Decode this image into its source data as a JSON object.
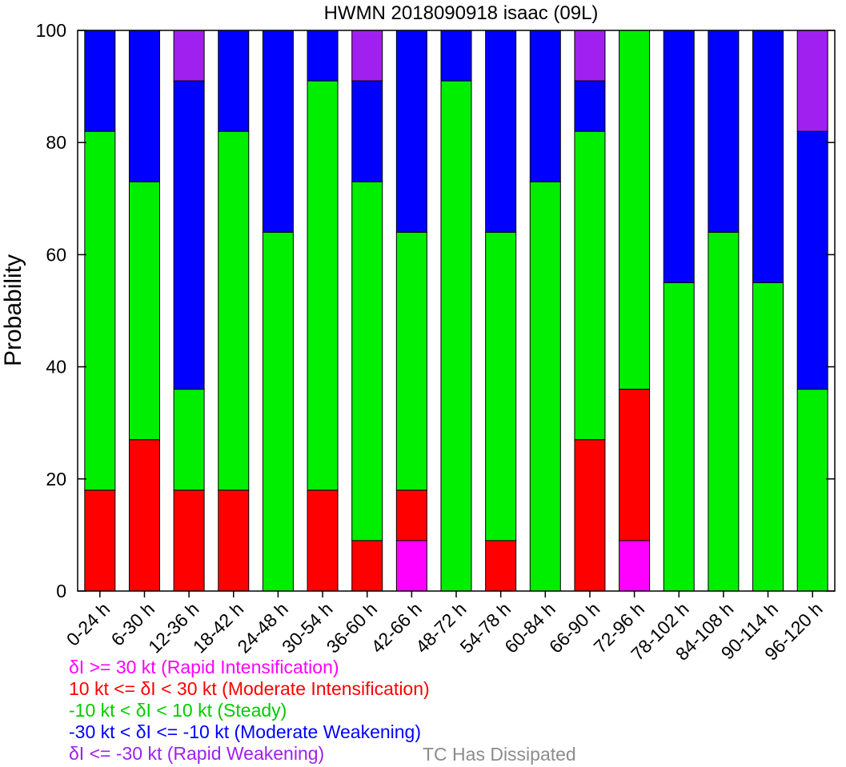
{
  "chart_data": {
    "type": "bar",
    "stacked": true,
    "title": "HWMN 2018090918 isaac (09L)",
    "ylabel": "Probability",
    "xlabel": "",
    "ylim": [
      0,
      100
    ],
    "yticks": [
      0,
      20,
      40,
      60,
      80,
      100
    ],
    "categories": [
      "0-24 h",
      "6-30 h",
      "12-36 h",
      "18-42 h",
      "24-48 h",
      "30-54 h",
      "36-60 h",
      "42-66 h",
      "48-72 h",
      "54-78 h",
      "60-84 h",
      "66-90 h",
      "72-96 h",
      "78-102 h",
      "84-108 h",
      "90-114 h",
      "96-120 h"
    ],
    "series": [
      {
        "name": "δI >= 30 kt (Rapid Intensification)",
        "color": "#ff00ff",
        "values": [
          0,
          0,
          0,
          0,
          0,
          0,
          0,
          9,
          0,
          0,
          0,
          0,
          9,
          0,
          0,
          0,
          0
        ]
      },
      {
        "name": "10 kt <= δI < 30 kt (Moderate Intensification)",
        "color": "#ff0000",
        "values": [
          18,
          27,
          18,
          18,
          0,
          18,
          9,
          9,
          0,
          9,
          0,
          27,
          27,
          0,
          0,
          0,
          0
        ]
      },
      {
        "name": "-10 kt < δI < 10 kt (Steady)",
        "color": "#00ee00",
        "values": [
          64,
          46,
          18,
          64,
          64,
          73,
          64,
          46,
          91,
          55,
          73,
          55,
          64,
          55,
          64,
          55,
          36
        ]
      },
      {
        "name": "-30 kt < δI <= -10 kt (Moderate Weakening)",
        "color": "#0000ff",
        "values": [
          18,
          27,
          55,
          18,
          36,
          9,
          18,
          36,
          9,
          36,
          27,
          9,
          0,
          45,
          36,
          45,
          46
        ]
      },
      {
        "name": "δI <= -30 kt (Rapid Weakening)",
        "color": "#a020f0",
        "values": [
          0,
          0,
          9,
          0,
          0,
          0,
          9,
          0,
          0,
          0,
          0,
          9,
          0,
          0,
          0,
          0,
          18
        ]
      }
    ],
    "grid": false,
    "legend_position": "bottom-left"
  },
  "legend": {
    "dissipated_label": "TC Has Dissipated",
    "dissipated_color": "#8c8c8c"
  }
}
